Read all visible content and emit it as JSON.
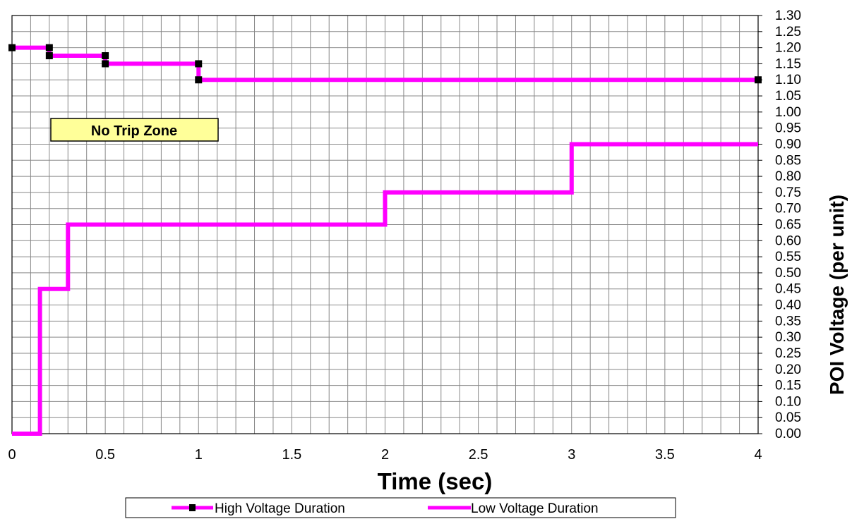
{
  "chart_data": {
    "type": "line",
    "xlabel": "Time (sec)",
    "ylabel": "POI Voltage (per unit)",
    "xlim": [
      0,
      4
    ],
    "ylim": [
      0,
      1.3
    ],
    "x_ticks": [
      "0",
      "0.5",
      "1",
      "1.5",
      "2",
      "2.5",
      "3",
      "3.5",
      "4"
    ],
    "y_ticks": [
      "0.00",
      "0.05",
      "0.10",
      "0.15",
      "0.20",
      "0.25",
      "0.30",
      "0.35",
      "0.40",
      "0.45",
      "0.50",
      "0.55",
      "0.60",
      "0.65",
      "0.70",
      "0.75",
      "0.80",
      "0.85",
      "0.90",
      "0.95",
      "1.00",
      "1.05",
      "1.10",
      "1.15",
      "1.20",
      "1.25",
      "1.30"
    ],
    "grid": true,
    "y_axis_position": "right",
    "legend_position": "bottom",
    "annotation": "No Trip Zone",
    "series": [
      {
        "name": "High Voltage Duration",
        "color": "#ff00ff",
        "marker_color": "#000000",
        "marker": "square",
        "x": [
          0,
          0.2,
          0.2,
          0.5,
          0.5,
          1.0,
          1.0,
          4.0
        ],
        "y": [
          1.2,
          1.2,
          1.175,
          1.175,
          1.15,
          1.15,
          1.1,
          1.1
        ]
      },
      {
        "name": "Low Voltage Duration",
        "color": "#ff00ff",
        "marker": "none",
        "x": [
          0,
          0.15,
          0.15,
          0.3,
          0.3,
          2.0,
          2.0,
          3.0,
          3.0,
          4.0
        ],
        "y": [
          0,
          0,
          0.45,
          0.45,
          0.65,
          0.65,
          0.75,
          0.75,
          0.9,
          0.9
        ]
      }
    ]
  }
}
